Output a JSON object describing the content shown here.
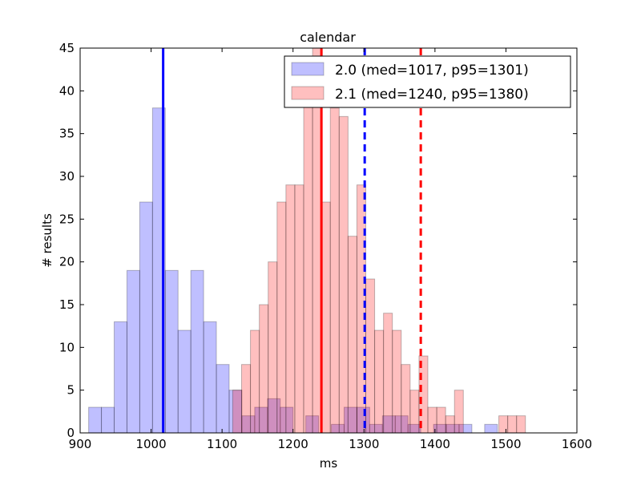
{
  "chart_data": {
    "type": "bar",
    "title": "calendar",
    "xlabel": "ms",
    "ylabel": "# results",
    "xlim": [
      900,
      1600
    ],
    "ylim": [
      0,
      45
    ],
    "xticks": [
      900,
      1000,
      1100,
      1200,
      1300,
      1400,
      1500,
      1600
    ],
    "yticks": [
      0,
      5,
      10,
      15,
      20,
      25,
      30,
      35,
      40,
      45
    ],
    "grid": false,
    "legend_position": "top-right",
    "series": [
      {
        "name": "2.0 (med=1017, p95=1301)",
        "color": "#0000ff",
        "bins": [
          {
            "x0": 912,
            "x1": 930,
            "count": 3
          },
          {
            "x0": 930,
            "x1": 948,
            "count": 3
          },
          {
            "x0": 948,
            "x1": 966,
            "count": 13
          },
          {
            "x0": 966,
            "x1": 984,
            "count": 19
          },
          {
            "x0": 984,
            "x1": 1002,
            "count": 27
          },
          {
            "x0": 1002,
            "x1": 1020,
            "count": 38
          },
          {
            "x0": 1020,
            "x1": 1038,
            "count": 19
          },
          {
            "x0": 1038,
            "x1": 1056,
            "count": 12
          },
          {
            "x0": 1056,
            "x1": 1074,
            "count": 19
          },
          {
            "x0": 1074,
            "x1": 1092,
            "count": 13
          },
          {
            "x0": 1092,
            "x1": 1110,
            "count": 8
          },
          {
            "x0": 1110,
            "x1": 1128,
            "count": 5
          },
          {
            "x0": 1128,
            "x1": 1146,
            "count": 2
          },
          {
            "x0": 1146,
            "x1": 1164,
            "count": 3
          },
          {
            "x0": 1164,
            "x1": 1182,
            "count": 4
          },
          {
            "x0": 1182,
            "x1": 1200,
            "count": 3
          },
          {
            "x0": 1218,
            "x1": 1236,
            "count": 2
          },
          {
            "x0": 1254,
            "x1": 1272,
            "count": 1
          },
          {
            "x0": 1272,
            "x1": 1290,
            "count": 3
          },
          {
            "x0": 1290,
            "x1": 1308,
            "count": 3
          },
          {
            "x0": 1308,
            "x1": 1326,
            "count": 1
          },
          {
            "x0": 1326,
            "x1": 1344,
            "count": 2
          },
          {
            "x0": 1344,
            "x1": 1362,
            "count": 2
          },
          {
            "x0": 1362,
            "x1": 1380,
            "count": 1
          },
          {
            "x0": 1398,
            "x1": 1416,
            "count": 1
          },
          {
            "x0": 1416,
            "x1": 1434,
            "count": 1
          },
          {
            "x0": 1434,
            "x1": 1452,
            "count": 1
          },
          {
            "x0": 1470,
            "x1": 1488,
            "count": 1
          }
        ],
        "median": 1017,
        "p95": 1301
      },
      {
        "name": "2.1 (med=1240, p95=1380)",
        "color": "#ff0000",
        "bins": [
          {
            "x0": 1115,
            "x1": 1127.5,
            "count": 5
          },
          {
            "x0": 1127.5,
            "x1": 1140,
            "count": 8
          },
          {
            "x0": 1140,
            "x1": 1152.5,
            "count": 12
          },
          {
            "x0": 1152.5,
            "x1": 1165,
            "count": 15
          },
          {
            "x0": 1165,
            "x1": 1177.5,
            "count": 20
          },
          {
            "x0": 1177.5,
            "x1": 1190,
            "count": 27
          },
          {
            "x0": 1190,
            "x1": 1202.5,
            "count": 29
          },
          {
            "x0": 1202.5,
            "x1": 1215,
            "count": 29
          },
          {
            "x0": 1215,
            "x1": 1227.5,
            "count": 39
          },
          {
            "x0": 1227.5,
            "x1": 1240,
            "count": 45
          },
          {
            "x0": 1240,
            "x1": 1252.5,
            "count": 27
          },
          {
            "x0": 1252.5,
            "x1": 1265,
            "count": 38
          },
          {
            "x0": 1265,
            "x1": 1277.5,
            "count": 37
          },
          {
            "x0": 1277.5,
            "x1": 1290,
            "count": 23
          },
          {
            "x0": 1290,
            "x1": 1302.5,
            "count": 29
          },
          {
            "x0": 1302.5,
            "x1": 1315,
            "count": 18
          },
          {
            "x0": 1315,
            "x1": 1327.5,
            "count": 12
          },
          {
            "x0": 1327.5,
            "x1": 1340,
            "count": 14
          },
          {
            "x0": 1340,
            "x1": 1352.5,
            "count": 12
          },
          {
            "x0": 1352.5,
            "x1": 1365,
            "count": 8
          },
          {
            "x0": 1365,
            "x1": 1377.5,
            "count": 5
          },
          {
            "x0": 1377.5,
            "x1": 1390,
            "count": 9
          },
          {
            "x0": 1390,
            "x1": 1402.5,
            "count": 3
          },
          {
            "x0": 1402.5,
            "x1": 1415,
            "count": 3
          },
          {
            "x0": 1415,
            "x1": 1427.5,
            "count": 2
          },
          {
            "x0": 1427.5,
            "x1": 1440,
            "count": 5
          },
          {
            "x0": 1490,
            "x1": 1502.5,
            "count": 2
          },
          {
            "x0": 1502.5,
            "x1": 1515,
            "count": 2
          },
          {
            "x0": 1515,
            "x1": 1527.5,
            "count": 2
          }
        ],
        "median": 1240,
        "p95": 1380
      }
    ]
  }
}
